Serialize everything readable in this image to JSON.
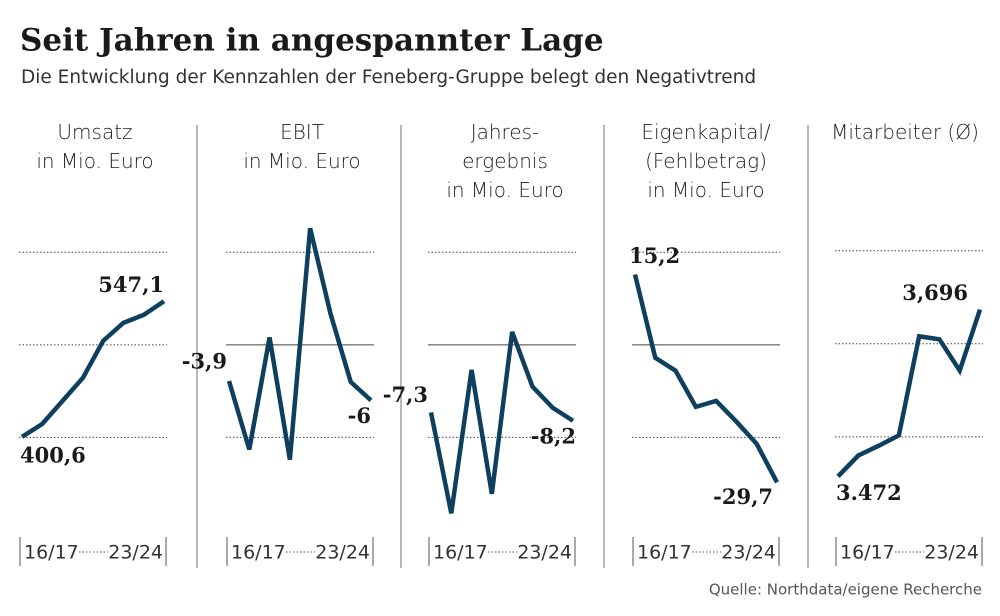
{
  "title": "Seit Jahren in angespannter Lage",
  "subtitle": "Die Entwicklung der Kennzahlen der Feneberg-Gruppe belegt den Negativtrend",
  "source": "Quelle: Northdata/eigene Recherche",
  "chart_data": [
    {
      "type": "line",
      "title": "Umsatz\nin Mio. Euro",
      "categories": [
        "16/17",
        null,
        null,
        null,
        null,
        null,
        null,
        "23/24"
      ],
      "values": [
        400.6,
        414.6,
        439.5,
        464.3,
        504.3,
        523.8,
        532.4,
        547.1
      ],
      "value_labels": [
        "400,6",
        null,
        null,
        null,
        null,
        null,
        null,
        "547,1"
      ],
      "color": "#0f3f5e",
      "ylim": [
        300,
        650
      ],
      "yticks": [
        400,
        500,
        600
      ],
      "grid": true
    },
    {
      "type": "line",
      "title": "EBIT\nin Mio. Euro",
      "categories": [
        "16/17",
        null,
        null,
        null,
        null,
        null,
        null,
        "23/24"
      ],
      "values": [
        -3.9,
        -11.3,
        0.8,
        -12.4,
        12.6,
        3.4,
        -4.0,
        -6
      ],
      "value_labels": [
        "-3,9",
        null,
        null,
        null,
        null,
        null,
        null,
        "-6"
      ],
      "color": "#0f3f5e",
      "ylim": [
        -20,
        15
      ],
      "yticks": [
        -10,
        0,
        10
      ],
      "grid": true
    },
    {
      "type": "line",
      "title": "Jahres-\nergebnis\nin Mio. Euro",
      "categories": [
        "16/17",
        null,
        null,
        null,
        null,
        null,
        null,
        "23/24"
      ],
      "values": [
        -7.3,
        -18.2,
        -2.7,
        -16.1,
        1.4,
        -4.5,
        -6.8,
        -8.2
      ],
      "value_labels": [
        "-7,3",
        null,
        null,
        null,
        null,
        null,
        null,
        "-8,2"
      ],
      "color": "#0f3f5e",
      "ylim": [
        -20,
        15
      ],
      "yticks": [
        -10,
        0,
        10
      ],
      "grid": true
    },
    {
      "type": "line",
      "title": "Eigenkapital/\n(Fehlbetrag)\nin Mio. Euro",
      "categories": [
        "16/17",
        null,
        null,
        null,
        null,
        null,
        null,
        "23/24"
      ],
      "values": [
        15.2,
        -2.8,
        -5.6,
        -13.4,
        -12.1,
        -16.6,
        -21.4,
        -29.7
      ],
      "value_labels": [
        "15,2",
        null,
        null,
        null,
        null,
        null,
        null,
        "-29,7"
      ],
      "color": "#0f3f5e",
      "ylim": [
        -40,
        30
      ],
      "yticks": [
        -20,
        0,
        20
      ],
      "grid": true
    },
    {
      "type": "line",
      "title": "Mitarbeiter (Ø)",
      "categories": [
        "16/17",
        null,
        null,
        null,
        null,
        null,
        null,
        "23/24"
      ],
      "values": [
        3472,
        3500,
        3513,
        3527,
        3660,
        3656,
        3614,
        3696
      ],
      "value_labels": [
        "3.472",
        null,
        null,
        null,
        null,
        null,
        null,
        "3,696"
      ],
      "color": "#0f3f5e",
      "ylim": [
        3400,
        3835
      ],
      "yticks": [
        3525,
        3650,
        3775
      ],
      "grid": true
    }
  ]
}
